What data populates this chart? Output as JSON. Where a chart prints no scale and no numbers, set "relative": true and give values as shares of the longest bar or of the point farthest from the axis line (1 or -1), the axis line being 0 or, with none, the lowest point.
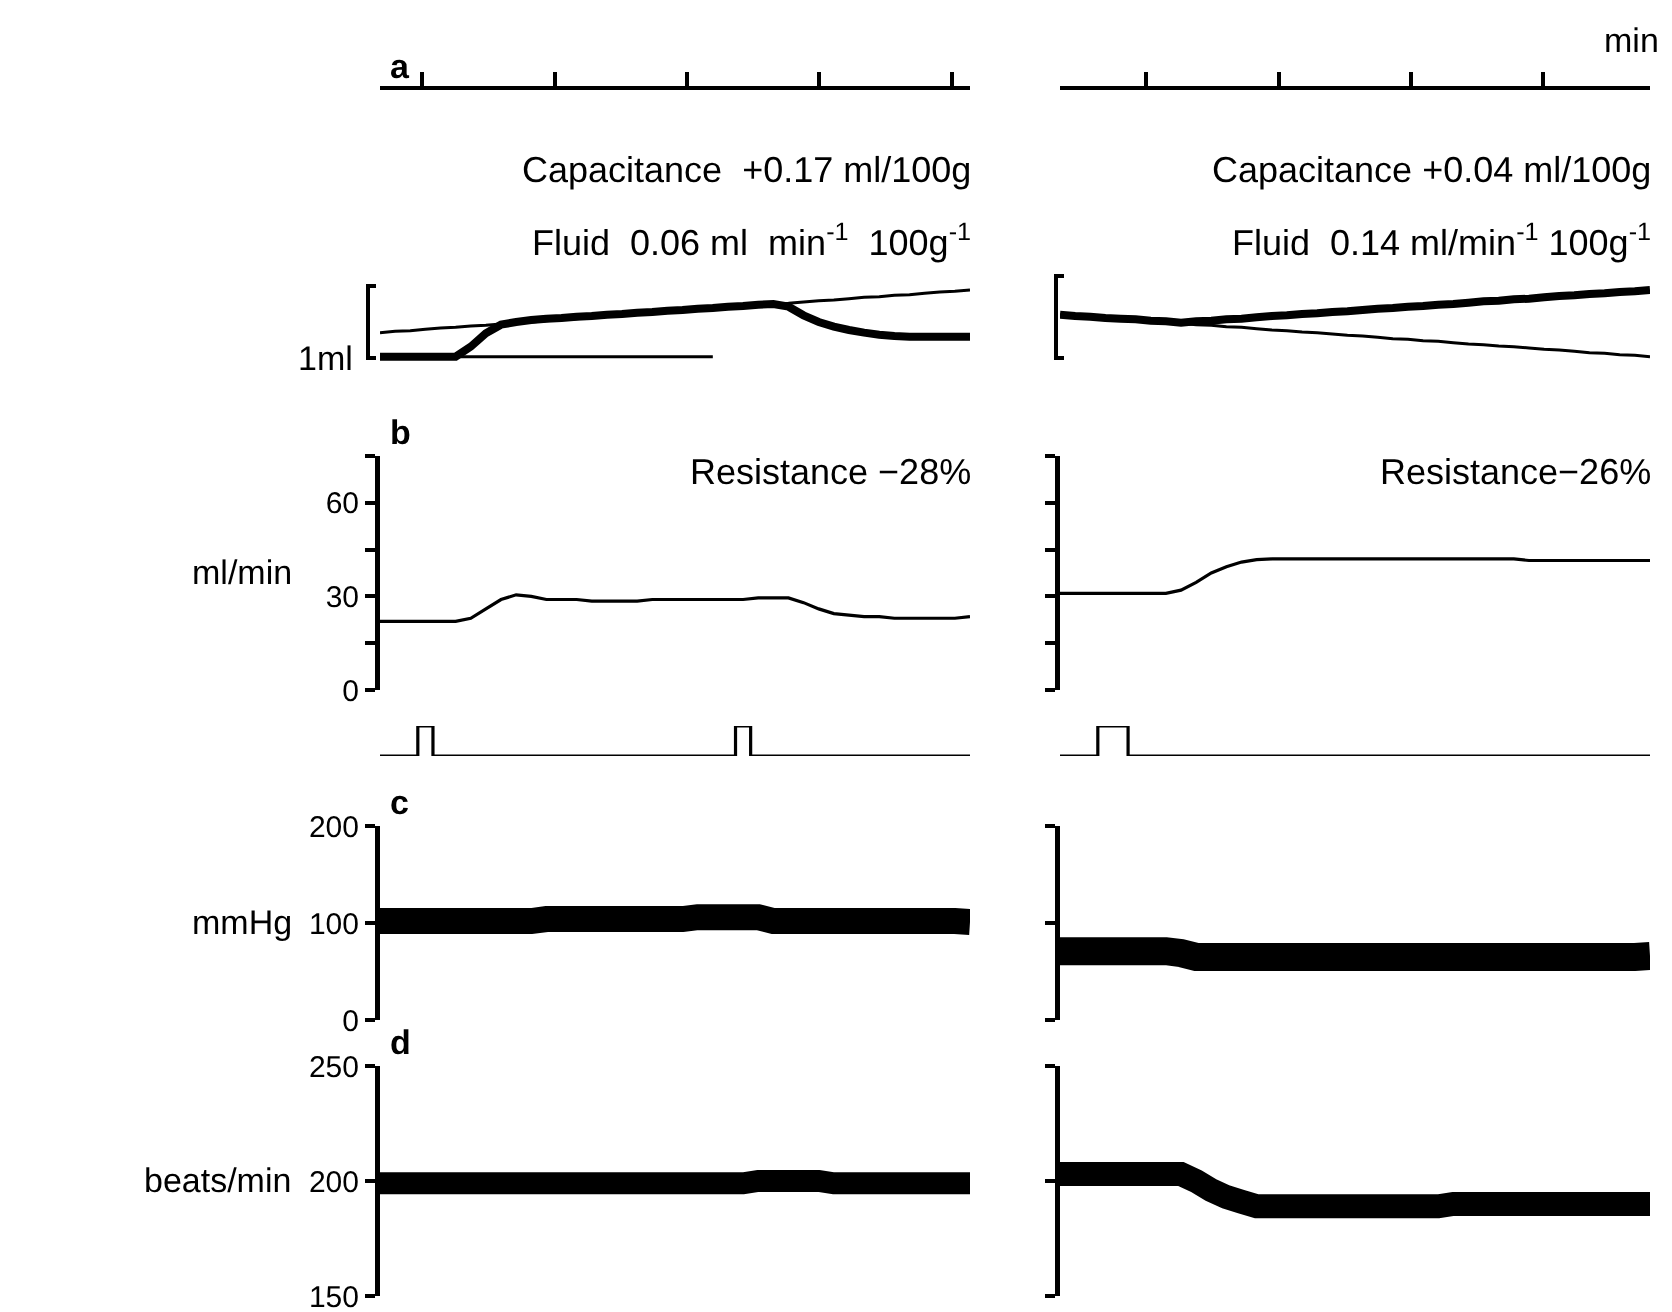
{
  "chart_data": [
    {
      "type": "line",
      "title": "a",
      "ylabel": "1ml",
      "relative": true,
      "tick_labels": false,
      "annotations": [
        "Capacitance  +0.17 ml/100g",
        "Fluid  0.06 ml  min$^{-1}$  100g$^{-1}$"
      ],
      "categories": [
        null,
        null,
        null,
        null,
        null,
        null,
        null,
        null,
        null,
        null,
        null,
        null,
        null,
        null,
        null,
        null,
        null,
        null,
        null,
        null,
        null,
        null,
        null,
        null,
        null,
        null,
        null,
        null,
        null,
        null,
        null,
        null,
        null,
        null,
        null,
        null,
        null,
        null,
        null,
        null
      ],
      "series": [
        {
          "color": "#000000",
          "values": [
            0,
            0,
            0,
            0,
            0,
            0,
            0.15,
            0.35,
            0.48,
            0.52,
            0.55,
            0.57,
            0.58,
            0.6,
            0.61,
            0.63,
            0.64,
            0.66,
            0.67,
            0.69,
            0.7,
            0.72,
            0.73,
            0.75,
            0.76,
            0.78,
            0.79,
            0.75,
            0.62,
            0.52,
            0.45,
            0.4,
            0.36,
            0.33,
            0.31,
            0.3,
            0.3,
            0.3,
            0.3,
            0.3
          ]
        },
        {
          "color": "#000000",
          "values": [
            0.36,
            0.38,
            0.39,
            0.41,
            0.43,
            0.44,
            0.46,
            0.47,
            0.49,
            0.51,
            0.52,
            0.54,
            0.56,
            0.57,
            0.59,
            0.61,
            0.62,
            0.64,
            0.66,
            0.67,
            0.69,
            0.7,
            0.72,
            0.74,
            0.75,
            0.77,
            0.79,
            0.8,
            0.82,
            0.84,
            0.85,
            0.87,
            0.89,
            0.9,
            0.92,
            0.93,
            0.95,
            0.97,
            0.98,
            1.0
          ]
        },
        {
          "color": "#000000",
          "values": [
            0,
            0,
            0,
            0,
            0,
            0,
            0,
            0,
            0,
            0,
            0,
            0,
            0,
            0,
            0,
            0,
            0,
            0,
            0,
            0,
            0,
            0,
            0,
            null,
            null,
            null,
            null,
            null,
            null,
            null,
            null,
            null,
            null,
            null,
            null,
            null,
            null,
            null,
            null,
            null
          ]
        }
      ]
    },
    {
      "type": "line",
      "xlabel": "min",
      "relative": true,
      "tick_labels": false,
      "annotations": [
        "Capacitance +0.04 ml/100g",
        "Fluid  0.14 ml/min$^{-1}$ 100g$^{-1}$"
      ],
      "categories": [
        null,
        null,
        null,
        null,
        null,
        null,
        null,
        null,
        null,
        null,
        null,
        null,
        null,
        null,
        null,
        null,
        null,
        null,
        null,
        null,
        null,
        null,
        null,
        null,
        null,
        null,
        null,
        null,
        null,
        null,
        null,
        null,
        null,
        null,
        null,
        null,
        null,
        null,
        null,
        null
      ],
      "series": [
        {
          "color": "#000000",
          "values": [
            0.63,
            0.61,
            0.6,
            0.58,
            0.57,
            0.56,
            0.54,
            0.53,
            0.51,
            0.53,
            0.54,
            0.56,
            0.57,
            0.59,
            0.61,
            0.62,
            0.64,
            0.65,
            0.67,
            0.68,
            0.7,
            0.72,
            0.73,
            0.75,
            0.76,
            0.78,
            0.79,
            0.81,
            0.83,
            0.84,
            0.86,
            0.87,
            0.89,
            0.91,
            0.92,
            0.94,
            0.95,
            0.97,
            0.98,
            1.0
          ]
        },
        {
          "color": "#000000",
          "values": [
            0.63,
            0.61,
            0.6,
            0.58,
            0.57,
            0.55,
            0.53,
            0.52,
            0.5,
            0.48,
            0.47,
            0.45,
            0.44,
            0.42,
            0.4,
            0.39,
            0.37,
            0.36,
            0.34,
            0.32,
            0.31,
            0.29,
            0.27,
            0.26,
            0.24,
            0.23,
            0.21,
            0.19,
            0.18,
            0.16,
            0.15,
            0.13,
            0.11,
            0.1,
            0.08,
            0.06,
            0.05,
            0.03,
            0.02,
            0
          ]
        }
      ]
    },
    {
      "type": "line",
      "title": "b",
      "ylabel": "ml/min",
      "tick_labels": "y",
      "annotations": [
        "Resistance −28%"
      ],
      "ylim": [
        0,
        75
      ],
      "yticks": [
        0,
        {
          "value": 15,
          "label": null
        },
        30,
        {
          "value": 45,
          "label": null
        },
        60,
        {
          "value": 75,
          "label": null
        }
      ],
      "categories": [
        null,
        null,
        null,
        null,
        null,
        null,
        null,
        null,
        null,
        null,
        null,
        null,
        null,
        null,
        null,
        null,
        null,
        null,
        null,
        null,
        null,
        null,
        null,
        null,
        null,
        null,
        null,
        null,
        null,
        null,
        null,
        null,
        null,
        null,
        null,
        null,
        null,
        null,
        null,
        null
      ],
      "series": [
        {
          "color": "#000000",
          "values": [
            22,
            22,
            22,
            22,
            22,
            22,
            23,
            26,
            29,
            30.5,
            30,
            29,
            29,
            29,
            28.5,
            28.5,
            28.5,
            28.5,
            29,
            29,
            29,
            29,
            29,
            29,
            29,
            29.5,
            29.5,
            29.5,
            28,
            26,
            24.5,
            24,
            23.5,
            23.5,
            23,
            23,
            23,
            23,
            23,
            23.5
          ]
        }
      ]
    },
    {
      "type": "line",
      "tick_labels": false,
      "annotations": [
        "Resistance−26%"
      ],
      "ylim": [
        0,
        75
      ],
      "yticks": [
        {
          "value": 0,
          "label": null
        },
        {
          "value": 15,
          "label": null
        },
        {
          "value": 30,
          "label": null
        },
        {
          "value": 45,
          "label": null
        },
        {
          "value": 60,
          "label": null
        },
        {
          "value": 75,
          "label": null
        }
      ],
      "categories": [
        null,
        null,
        null,
        null,
        null,
        null,
        null,
        null,
        null,
        null,
        null,
        null,
        null,
        null,
        null,
        null,
        null,
        null,
        null,
        null,
        null,
        null,
        null,
        null,
        null,
        null,
        null,
        null,
        null,
        null,
        null,
        null,
        null,
        null,
        null,
        null,
        null,
        null,
        null,
        null
      ],
      "series": [
        {
          "color": "#000000",
          "values": [
            31,
            31,
            31,
            31,
            31,
            31,
            31,
            31,
            32,
            34.5,
            37.5,
            39.5,
            41,
            41.8,
            42,
            42,
            42,
            42,
            42,
            42,
            42,
            42,
            42,
            42,
            42,
            42,
            42,
            42,
            42,
            42,
            42,
            41.5,
            41.5,
            41.5,
            41.5,
            41.5,
            41.5,
            41.5,
            41.5,
            41.5
          ]
        }
      ]
    },
    {
      "type": "step",
      "relative": true,
      "tick_labels": false,
      "categories": [
        null,
        null,
        null,
        null,
        null,
        null,
        null,
        null,
        null,
        null,
        null,
        null,
        null,
        null,
        null,
        null,
        null,
        null,
        null,
        null,
        null,
        null,
        null,
        null,
        null,
        null,
        null,
        null,
        null,
        null,
        null,
        null,
        null,
        null,
        null,
        null,
        null,
        null,
        null,
        null
      ],
      "series": [
        {
          "color": "#000000",
          "values": [
            0,
            0,
            0,
            1,
            0,
            0,
            0,
            0,
            0,
            0,
            0,
            0,
            0,
            0,
            0,
            0,
            0,
            0,
            0,
            0,
            0,
            0,
            0,
            0,
            1,
            0,
            0,
            0,
            0,
            0,
            0,
            0,
            0,
            0,
            0,
            0,
            0,
            0,
            0,
            0
          ]
        }
      ]
    },
    {
      "type": "step",
      "relative": true,
      "tick_labels": false,
      "categories": [
        null,
        null,
        null,
        null,
        null,
        null,
        null,
        null,
        null,
        null,
        null,
        null,
        null,
        null,
        null,
        null,
        null,
        null,
        null,
        null,
        null,
        null,
        null,
        null,
        null,
        null,
        null,
        null,
        null,
        null,
        null,
        null,
        null,
        null,
        null,
        null,
        null,
        null,
        null,
        null
      ],
      "series": [
        {
          "color": "#000000",
          "values": [
            0,
            0,
            0,
            1,
            1,
            0,
            0,
            0,
            0,
            0,
            0,
            0,
            0,
            0,
            0,
            0,
            0,
            0,
            0,
            0,
            0,
            0,
            0,
            0,
            0,
            0,
            0,
            0,
            0,
            0,
            0,
            0,
            0,
            0,
            0,
            0,
            0,
            0,
            0,
            0
          ]
        }
      ]
    },
    {
      "type": "line",
      "title": "c",
      "ylabel": "mmHg",
      "tick_labels": "y",
      "ylim": [
        0,
        200
      ],
      "yticks": [
        0,
        100,
        200
      ],
      "categories": [
        null,
        null,
        null,
        null,
        null,
        null,
        null,
        null,
        null,
        null,
        null,
        null,
        null,
        null,
        null,
        null,
        null,
        null,
        null,
        null,
        null,
        null,
        null,
        null,
        null,
        null,
        null,
        null,
        null,
        null,
        null,
        null,
        null,
        null,
        null,
        null,
        null,
        null,
        null,
        null
      ],
      "series": [
        {
          "color": "#000000",
          "values": [
            102,
            102,
            102,
            102,
            102,
            102,
            102,
            102,
            102,
            102,
            102,
            104,
            104,
            104,
            104,
            104,
            104,
            104,
            104,
            104,
            104,
            106,
            106,
            106,
            106,
            106,
            102,
            102,
            102,
            102,
            102,
            102,
            102,
            102,
            102,
            102,
            102,
            102,
            102,
            101
          ]
        }
      ]
    },
    {
      "type": "line",
      "tick_labels": false,
      "ylim": [
        0,
        200
      ],
      "yticks": [
        {
          "value": 0,
          "label": null
        },
        {
          "value": 100,
          "label": null
        },
        {
          "value": 200,
          "label": null
        }
      ],
      "categories": [
        null,
        null,
        null,
        null,
        null,
        null,
        null,
        null,
        null,
        null,
        null,
        null,
        null,
        null,
        null,
        null,
        null,
        null,
        null,
        null,
        null,
        null,
        null,
        null,
        null,
        null,
        null,
        null,
        null,
        null,
        null,
        null,
        null,
        null,
        null,
        null,
        null,
        null,
        null,
        null
      ],
      "series": [
        {
          "color": "#000000",
          "values": [
            71,
            71,
            71,
            71,
            71,
            71,
            71,
            71,
            69,
            65,
            65,
            65,
            65,
            65,
            65,
            65,
            65,
            65,
            65,
            65,
            65,
            65,
            65,
            65,
            65,
            65,
            65,
            65,
            65,
            65,
            65,
            65,
            65,
            65,
            65,
            65,
            65,
            65,
            65,
            66
          ]
        }
      ]
    },
    {
      "type": "line",
      "title": "d",
      "ylabel": "beats/min",
      "tick_labels": "y",
      "ylim": [
        150,
        250
      ],
      "yticks": [
        150,
        200,
        250
      ],
      "categories": [
        null,
        null,
        null,
        null,
        null,
        null,
        null,
        null,
        null,
        null,
        null,
        null,
        null,
        null,
        null,
        null,
        null,
        null,
        null,
        null,
        null,
        null,
        null,
        null,
        null,
        null,
        null,
        null,
        null,
        null,
        null,
        null,
        null,
        null,
        null,
        null,
        null,
        null,
        null,
        null
      ],
      "series": [
        {
          "color": "#000000",
          "values": [
            199,
            199,
            199,
            199,
            199,
            199,
            199,
            199,
            199,
            199,
            199,
            199,
            199,
            199,
            199,
            199,
            199,
            199,
            199,
            199,
            199,
            199,
            199,
            199,
            199,
            200,
            200,
            200,
            200,
            200,
            199,
            199,
            199,
            199,
            199,
            199,
            199,
            199,
            199,
            199
          ]
        }
      ]
    },
    {
      "type": "line",
      "tick_labels": false,
      "ylim": [
        150,
        250
      ],
      "yticks": [
        {
          "value": 150,
          "label": null
        },
        {
          "value": 200,
          "label": null
        },
        {
          "value": 250,
          "label": null
        }
      ],
      "categories": [
        null,
        null,
        null,
        null,
        null,
        null,
        null,
        null,
        null,
        null,
        null,
        null,
        null,
        null,
        null,
        null,
        null,
        null,
        null,
        null,
        null,
        null,
        null,
        null,
        null,
        null,
        null,
        null,
        null,
        null,
        null,
        null,
        null,
        null,
        null,
        null,
        null,
        null,
        null,
        null
      ],
      "series": [
        {
          "color": "#000000",
          "values": [
            203,
            203,
            203,
            203,
            203,
            203,
            203,
            203,
            203,
            200,
            196,
            193,
            191,
            189,
            189,
            189,
            189,
            189,
            189,
            189,
            189,
            189,
            189,
            189,
            189,
            189,
            190,
            190,
            190,
            190,
            190,
            190,
            190,
            190,
            190,
            190,
            190,
            190,
            190,
            190
          ]
        }
      ]
    }
  ]
}
